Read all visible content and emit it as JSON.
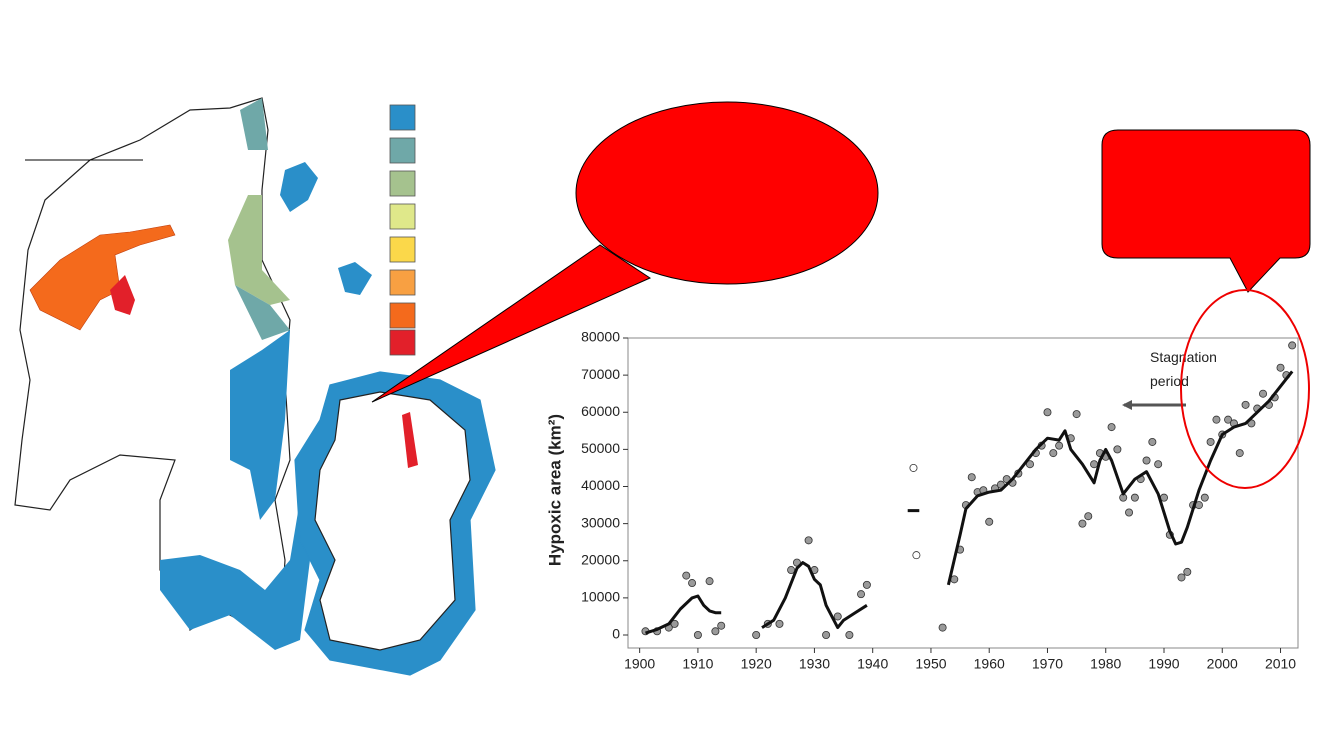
{
  "chart_data": {
    "type": "scatter",
    "y_label": "Hypoxic area (km²)",
    "annotation": "Stagnation period",
    "xlim": [
      1898,
      2013
    ],
    "ylim": [
      -3500,
      80000
    ],
    "xticks": [
      1900,
      1910,
      1920,
      1930,
      1940,
      1950,
      1960,
      1970,
      1980,
      1990,
      2000,
      2010
    ],
    "yticks": [
      0,
      10000,
      20000,
      30000,
      40000,
      50000,
      60000,
      70000,
      80000
    ],
    "series": [
      {
        "color": "#9a9a9a",
        "mode": "points",
        "x": [
          1901,
          1903,
          1905,
          1906,
          1908,
          1909,
          1910,
          1912,
          1913,
          1914,
          1920,
          1922,
          1924,
          1926,
          1927,
          1929,
          1930,
          1932,
          1934,
          1936,
          1938,
          1939,
          1952,
          1954,
          1955,
          1956,
          1957,
          1958,
          1959,
          1960,
          1961,
          1962,
          1963,
          1964,
          1965,
          1967,
          1968,
          1969,
          1970,
          1971,
          1972,
          1974,
          1975,
          1976,
          1977,
          1978,
          1979,
          1980,
          1981,
          1982,
          1983,
          1984,
          1985,
          1986,
          1987,
          1988,
          1989,
          1990,
          1991,
          1993,
          1994,
          1995,
          1996,
          1997,
          1998,
          1999,
          2000,
          2001,
          2002,
          2003,
          2004,
          2005,
          2006,
          2007,
          2008,
          2009,
          2010,
          2011,
          2012
        ],
        "values": [
          1000,
          1000,
          2000,
          3000,
          16000,
          14000,
          0,
          14500,
          1000,
          2500,
          0,
          3000,
          3000,
          17500,
          19500,
          25500,
          17500,
          0,
          5000,
          0,
          11000,
          13500,
          2000,
          15000,
          23000,
          35000,
          42500,
          38500,
          39000,
          30500,
          39500,
          40500,
          42000,
          41000,
          43500,
          46000,
          49000,
          51000,
          60000,
          49000,
          51000,
          53000,
          59500,
          30000,
          32000,
          46000,
          49000,
          48000,
          56000,
          50000,
          37000,
          33000,
          37000,
          42000,
          47000,
          52000,
          46000,
          37000,
          27000,
          15500,
          17000,
          35000,
          35000,
          37000,
          52000,
          58000,
          54000,
          58000,
          57000,
          49000,
          62000,
          57000,
          61000,
          65000,
          62000,
          64000,
          72000,
          70000,
          78000
        ]
      },
      {
        "color": "#ffffff",
        "mode": "points",
        "x": [
          1947,
          1947.5
        ],
        "values": [
          45000,
          21500
        ]
      },
      {
        "color": "#111111",
        "mode": "line",
        "x": [
          1901,
          1903,
          1905,
          1907,
          1909,
          1910,
          1911,
          1912,
          1913,
          1914,
          null,
          1921,
          1923,
          1925,
          1927,
          1928,
          1929,
          1930,
          1931,
          1932,
          1934,
          1935,
          1937,
          1939,
          null,
          1946,
          1948,
          null,
          1953,
          1955,
          1956,
          1958,
          1960,
          1962,
          1964,
          1966,
          1968,
          1970,
          1972,
          1973,
          1974,
          1976,
          1978,
          1979,
          1980,
          1981,
          1983,
          1985,
          1987,
          1989,
          1991,
          1992,
          1993,
          1994,
          1996,
          1998,
          2000,
          2002,
          2004,
          2006,
          2008,
          2010,
          2012
        ],
        "values": [
          500,
          1500,
          3000,
          7000,
          10000,
          10500,
          8000,
          6500,
          6000,
          6000,
          null,
          2000,
          4000,
          10000,
          18000,
          19500,
          18500,
          15000,
          13500,
          8000,
          2000,
          4000,
          6000,
          8000,
          null,
          33500,
          33500,
          null,
          13500,
          27000,
          34000,
          37500,
          38500,
          39000,
          42000,
          46000,
          50000,
          53000,
          52500,
          55000,
          50000,
          46000,
          41000,
          47000,
          50000,
          47000,
          38000,
          42000,
          44000,
          38000,
          28000,
          24500,
          25000,
          29000,
          39000,
          47000,
          54000,
          56000,
          57000,
          60000,
          63000,
          67000,
          71000
        ]
      }
    ]
  }
}
